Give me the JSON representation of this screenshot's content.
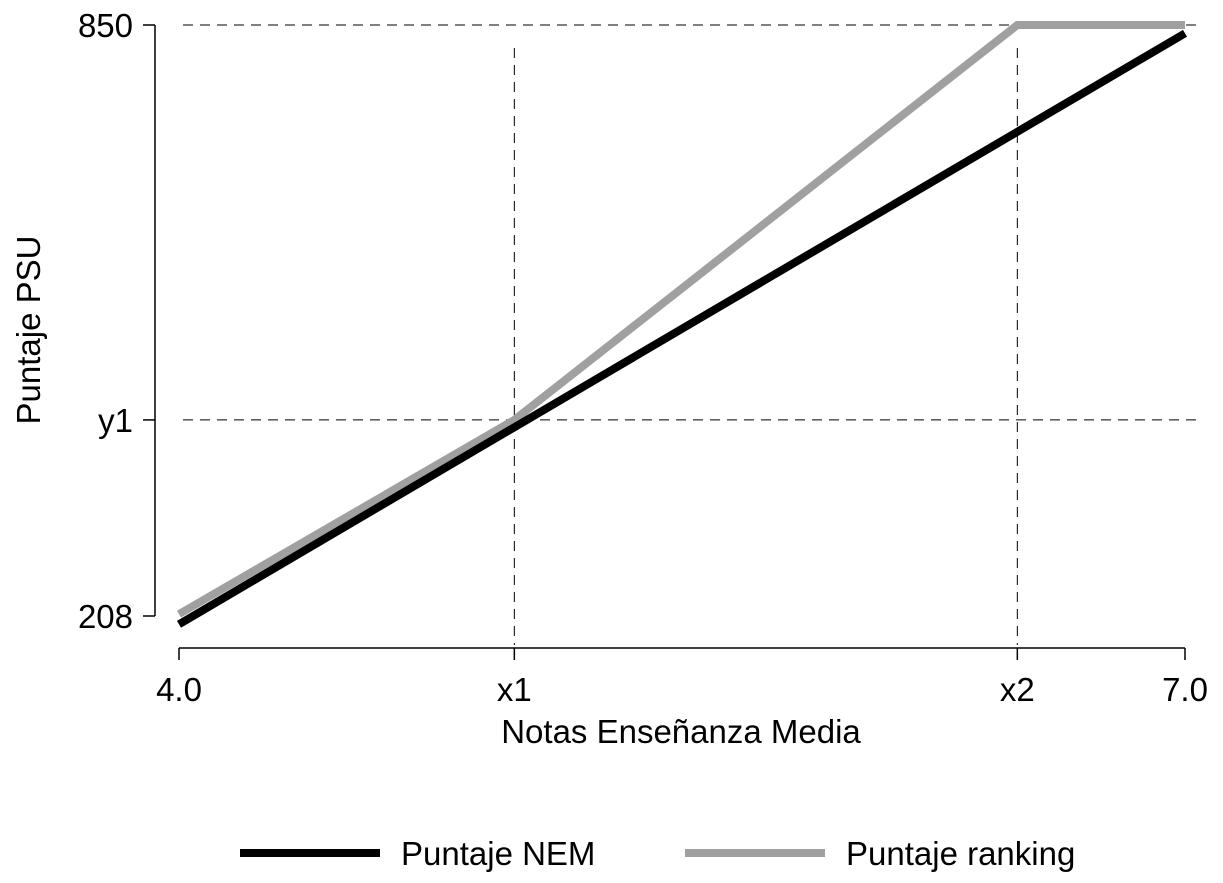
{
  "chart_data": {
    "type": "line",
    "x_label": "Notas Enseñanza Media",
    "y_label": "Puntaje PSU",
    "x": [
      4.0,
      5.0,
      6.5,
      7.0
    ],
    "series": [
      {
        "name": "Puntaje NEM",
        "color": "#000000",
        "values": [
          199,
          413,
          734,
          841
        ]
      },
      {
        "name": "Puntaje ranking",
        "color": "#a0a0a0",
        "values": [
          210,
          421,
          850,
          850
        ]
      }
    ],
    "xlim": [
      4.0,
      7.0
    ],
    "xticks": [
      {
        "value": 4.0,
        "label": "4.0"
      },
      {
        "value": 5.0,
        "label": "x1"
      },
      {
        "value": 6.5,
        "label": "x2"
      },
      {
        "value": 7.0,
        "label": "7.0"
      }
    ],
    "ylim": [
      208,
      850
    ],
    "yticks": [
      208,
      {
        "value": 421,
        "label": "y1"
      },
      850
    ],
    "grid": true,
    "legend": "bottom"
  }
}
